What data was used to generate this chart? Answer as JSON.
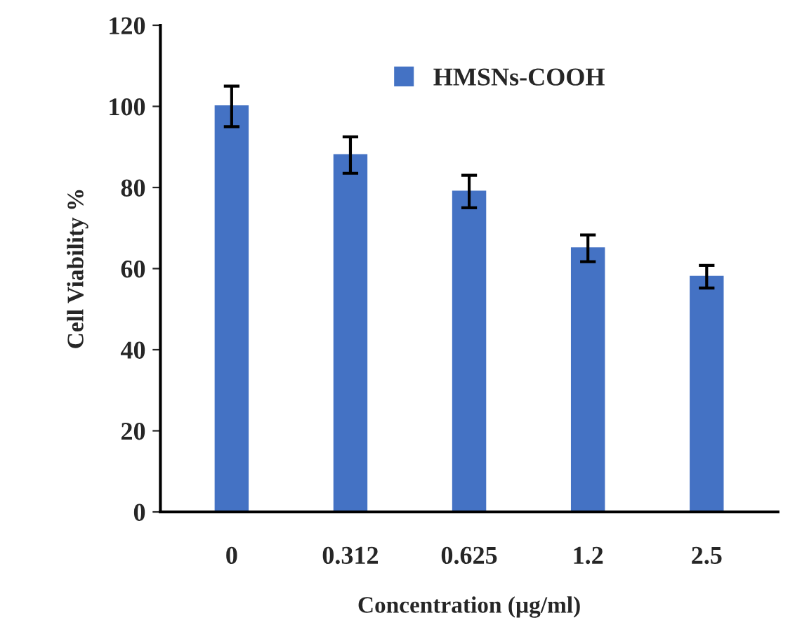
{
  "chart_data": {
    "type": "bar",
    "xlabel": "Concentration (µg/ml)",
    "ylabel": "Cell Viability %",
    "categories": [
      "0",
      "0.312",
      "0.625",
      "1.2",
      "2.5"
    ],
    "series": [
      {
        "name": "HMSNs-COOH",
        "color": "#4472c4",
        "values": [
          100,
          88,
          79,
          65,
          58
        ],
        "errors": [
          5,
          4.5,
          4,
          3.3,
          2.8
        ]
      }
    ],
    "ylim": [
      0,
      120
    ],
    "yticks": [
      0,
      20,
      40,
      60,
      80,
      100,
      120
    ],
    "grid": false,
    "legend": "top"
  }
}
